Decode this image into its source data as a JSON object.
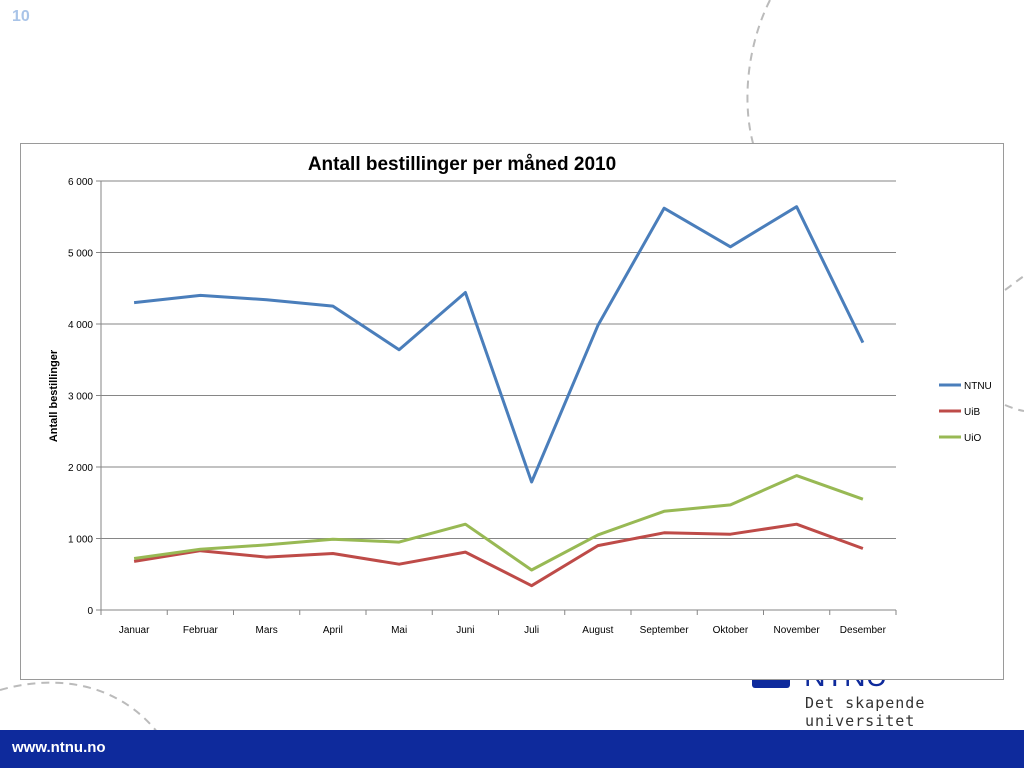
{
  "slide": {
    "number": "10"
  },
  "footer": {
    "url": "www.ntnu.no"
  },
  "logo": {
    "tagline": "Det skapende universitet"
  },
  "colors": {
    "footer_bg": "#0e2a9c",
    "slide_number": "#a9c4e8",
    "ntnu": "#4a7ebb",
    "uib": "#be4b48",
    "uio": "#98b954"
  },
  "chart_data": {
    "type": "line",
    "title": "Antall bestillinger per måned 2010",
    "xlabel": "",
    "ylabel": "Antall bestillinger",
    "categories": [
      "Januar",
      "Februar",
      "Mars",
      "April",
      "Mai",
      "Juni",
      "Juli",
      "August",
      "September",
      "Oktober",
      "November",
      "Desember"
    ],
    "ylim": [
      0,
      6000
    ],
    "yticks": [
      0,
      1000,
      2000,
      3000,
      4000,
      5000,
      6000
    ],
    "ytick_labels": [
      "0",
      "1 000",
      "2 000",
      "3 000",
      "4 000",
      "5 000",
      "6 000"
    ],
    "grid": true,
    "legend": "right",
    "series": [
      {
        "name": "NTNU",
        "color": "#4a7ebb",
        "values": [
          4300,
          4400,
          4340,
          4250,
          3640,
          4440,
          1790,
          3980,
          5620,
          5080,
          5640,
          3740
        ]
      },
      {
        "name": "UiB",
        "color": "#be4b48",
        "values": [
          680,
          830,
          740,
          790,
          640,
          810,
          340,
          900,
          1080,
          1060,
          1200,
          860
        ]
      },
      {
        "name": "UiO",
        "color": "#98b954",
        "values": [
          720,
          850,
          910,
          990,
          950,
          1200,
          560,
          1050,
          1380,
          1470,
          1880,
          1550
        ]
      }
    ]
  }
}
